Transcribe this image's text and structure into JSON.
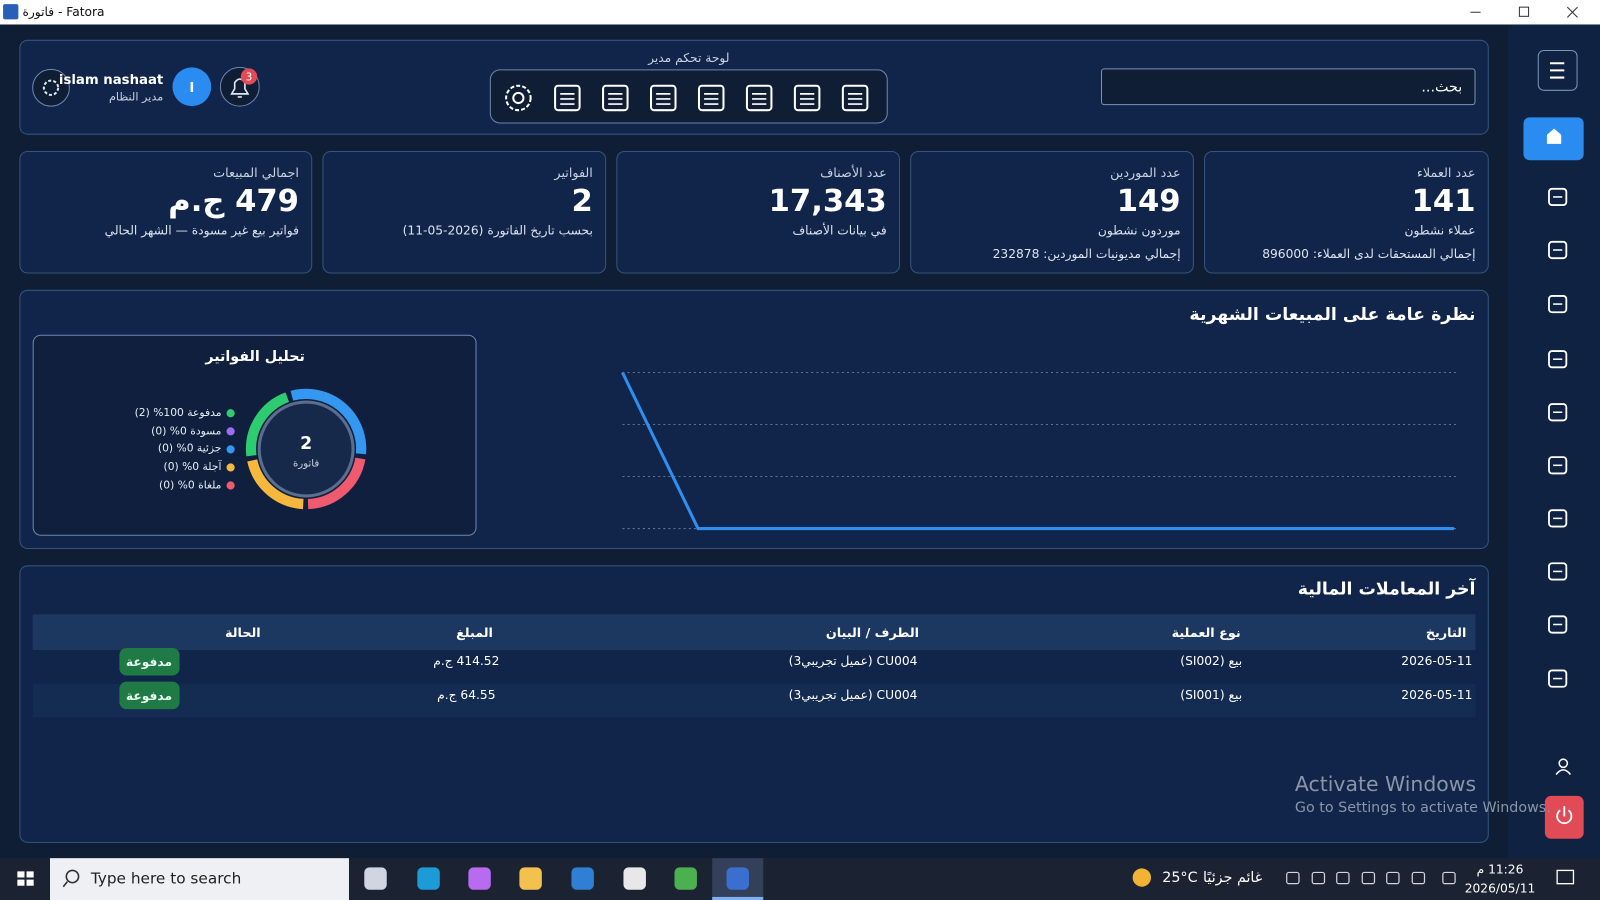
{
  "window": {
    "title": "فاتورة - Fatora"
  },
  "header": {
    "toolbar_label": "لوحة تحكم مدير",
    "search_placeholder": "بحث...",
    "user_name": "islam nashaat",
    "user_role": "مدير النظام",
    "avatar_initial": "I",
    "notification_count": "3"
  },
  "stat_cards": [
    {
      "title": "عدد العملاء",
      "value": "141",
      "subtitle": "عملاء نشطون",
      "footer": "إجمالي المستحقات لدى العملاء: 896000"
    },
    {
      "title": "عدد الموردين",
      "value": "149",
      "subtitle": "موردون نشطون",
      "footer": "إجمالي مديونيات الموردين: 232878"
    },
    {
      "title": "عدد الأصناف",
      "value": "17,343",
      "subtitle": "في بيانات الأصناف"
    },
    {
      "title": "الفواتير",
      "value": "2",
      "subtitle": "بحسب تاريخ الفاتورة (2026-05-11)"
    },
    {
      "title": "اجمالي المبيعات",
      "value": "479 ج.م",
      "subtitle": "فواتير بيع غير مسودة — الشهر الحالي"
    }
  ],
  "chart_data": {
    "type": "line",
    "title": "نظرة عامة على المبيعات الشهرية",
    "categories": [
      null,
      null,
      null,
      null,
      null,
      null,
      null,
      null,
      null,
      null,
      null,
      null
    ],
    "values": [
      479,
      0,
      0,
      0,
      0,
      0,
      0,
      0,
      0,
      0,
      0,
      0
    ],
    "ylim": [
      0,
      479
    ],
    "color": "#2f8ff0",
    "grid": true
  },
  "invoice_analysis": {
    "title": "تحليل الفواتير",
    "center_value": "2",
    "center_label": "فاتورة",
    "legend": [
      {
        "label": "مدفوعة 100% (2)",
        "color": "#2ecc71"
      },
      {
        "label": "مسودة 0% (0)",
        "color": "#9b6cf6"
      },
      {
        "label": "جزئية 0% (0)",
        "color": "#3498f0"
      },
      {
        "label": "آجلة 0% (0)",
        "color": "#f5b83d"
      },
      {
        "label": "ملغاة 0% (0)",
        "color": "#ef5a6f"
      }
    ]
  },
  "transactions": {
    "title": "آخر المعاملات المالية",
    "columns": [
      "التاريخ",
      "نوع العملية",
      "الطرف / البيان",
      "المبلغ",
      "الحالة"
    ],
    "rows": [
      [
        "2026-05-11",
        "بيع (SI002)",
        "CU004 (عميل تجريبي3)",
        "414.52 ج.م",
        "مدفوعة"
      ],
      [
        "2026-05-11",
        "بيع (SI001)",
        "CU004 (عميل تجريبي3)",
        "64.55 ج.م",
        "مدفوعة"
      ]
    ]
  },
  "watermark": {
    "line1": "Activate Windows",
    "line2": "Go to Settings to activate Windows."
  },
  "taskbar": {
    "search_placeholder": "Type here to search",
    "temperature": "25°C",
    "weather": "غائم جزئيًا",
    "time": "11:26 م",
    "date": "2026/05/11"
  }
}
